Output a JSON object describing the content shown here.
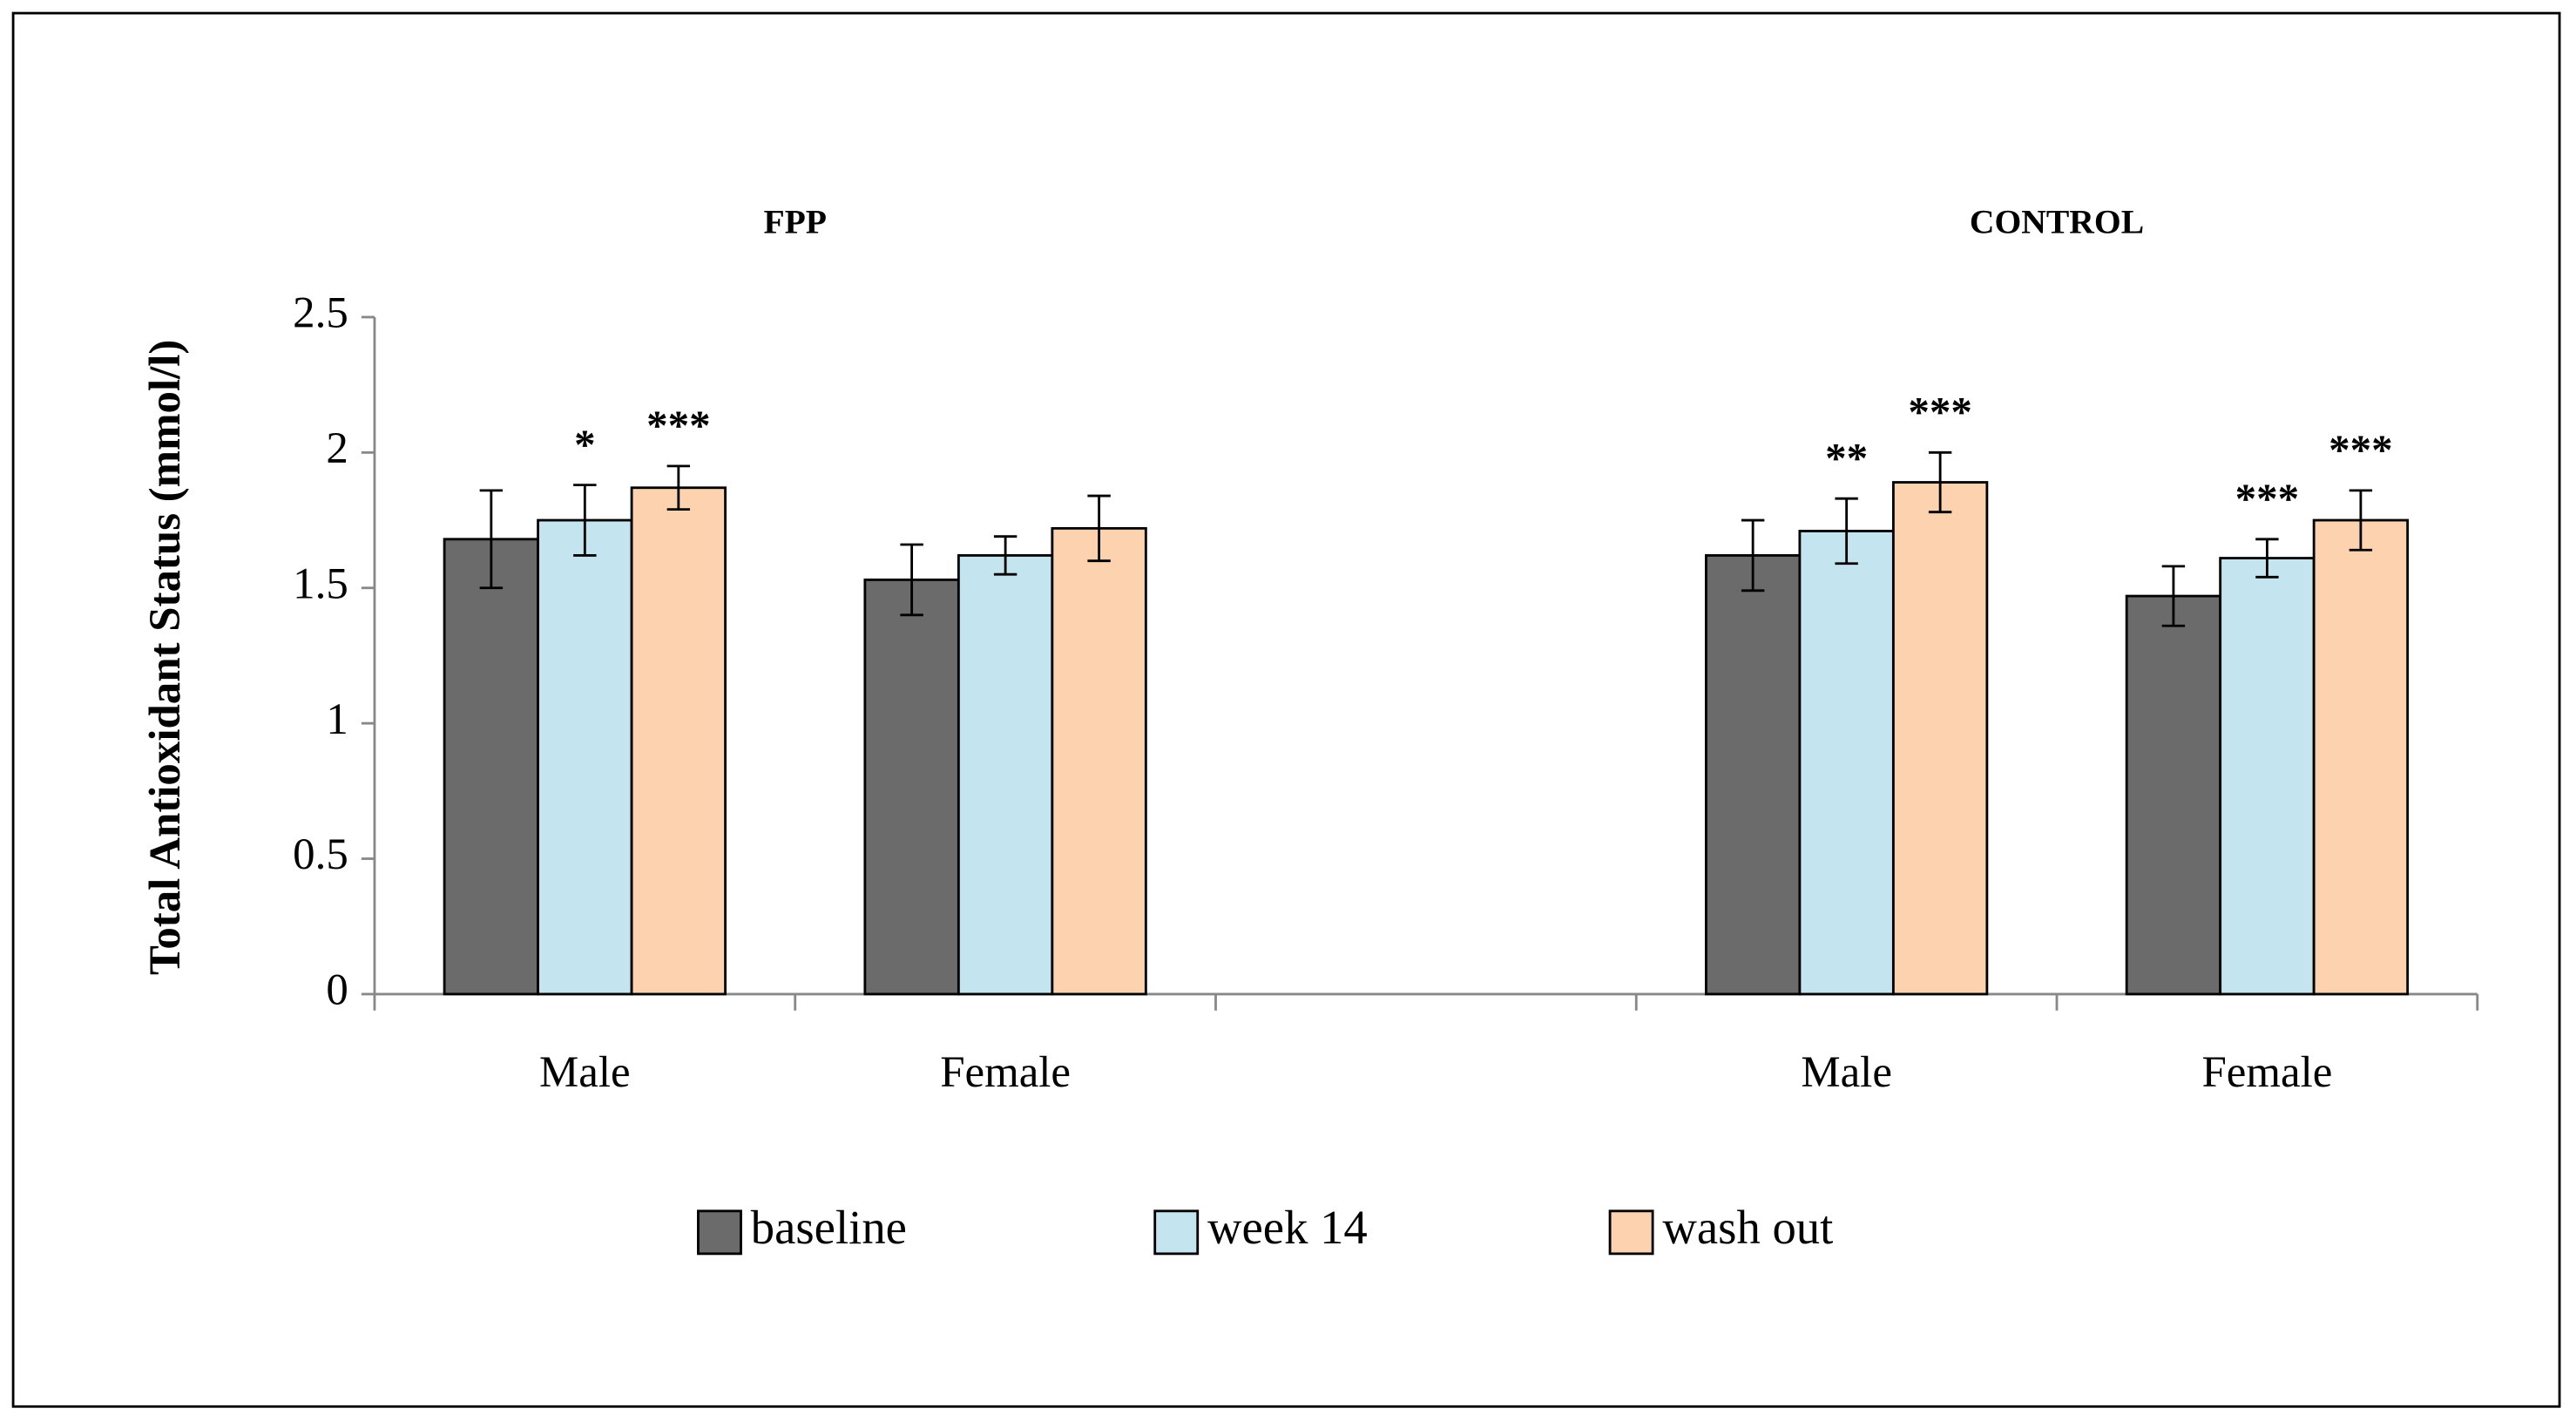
{
  "chart_data": {
    "type": "bar",
    "y_label": "Total Antioxidant Status (mmol/l)",
    "groups": [
      "FPP",
      "CONTROL"
    ],
    "categories": [
      "Male",
      "Female",
      null,
      "Male",
      "Female"
    ],
    "series": [
      {
        "name": "baseline",
        "color": "#6b6b6b",
        "values": [
          1.68,
          1.53,
          null,
          1.62,
          1.47
        ],
        "errors": [
          0.18,
          0.13,
          null,
          0.13,
          0.11
        ],
        "annotations": [
          null,
          null,
          null,
          null,
          null
        ]
      },
      {
        "name": "week 14",
        "color": "#c4e5ef",
        "values": [
          1.75,
          1.62,
          null,
          1.71,
          1.61
        ],
        "errors": [
          0.13,
          0.07,
          null,
          0.12,
          0.07
        ],
        "annotations": [
          "*",
          null,
          null,
          "**",
          "***"
        ]
      },
      {
        "name": "wash out",
        "color": "#fdd2ae",
        "values": [
          1.87,
          1.72,
          null,
          1.89,
          1.75
        ],
        "errors": [
          0.08,
          0.12,
          null,
          0.11,
          0.11
        ],
        "annotations": [
          "***",
          null,
          null,
          "***",
          "***"
        ]
      }
    ],
    "ylim": [
      0,
      2.5
    ],
    "yticks": [
      0,
      0.5,
      1,
      1.5,
      2,
      2.5
    ],
    "legend": "bottom"
  }
}
